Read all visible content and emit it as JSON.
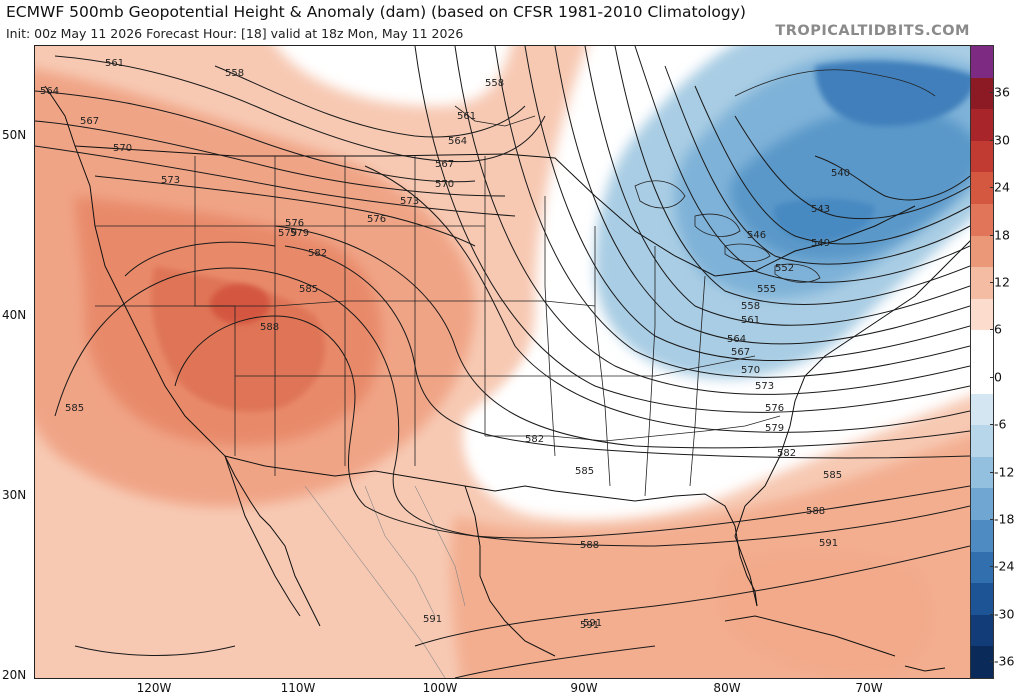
{
  "header": {
    "title": "ECMWF 500mb Geopotential Height & Anomaly (dam) (based on CFSR 1981-2010 Climatology)",
    "subtitle": "Init: 00z May 11 2026   Forecast Hour: [18]   valid at 18z Mon, May 11 2026",
    "brand": "TROPICALTIDBITS.COM"
  },
  "map": {
    "lat_labels": [
      "50N",
      "40N",
      "30N",
      "20N"
    ],
    "lon_labels": [
      "120W",
      "110W",
      "100W",
      "90W",
      "80W",
      "70W"
    ],
    "contour_labels": [
      "561",
      "558",
      "564",
      "567",
      "570",
      "573",
      "576",
      "579",
      "582",
      "585",
      "588",
      "591",
      "558",
      "561",
      "564",
      "567",
      "570",
      "573",
      "576",
      "579",
      "582",
      "585",
      "588",
      "591",
      "540",
      "543",
      "546",
      "549",
      "552",
      "555",
      "558",
      "561",
      "564",
      "567",
      "570",
      "573",
      "576",
      "579",
      "582",
      "585",
      "588",
      "591",
      "585",
      "591"
    ]
  },
  "colorbar": {
    "ticks": [
      "36",
      "30",
      "24",
      "18",
      "12",
      "6",
      "0",
      "-6",
      "-12",
      "-18",
      "-24",
      "-30",
      "-36"
    ],
    "colors": [
      "#7d2a83",
      "#8c1a24",
      "#a8262a",
      "#c23b33",
      "#d4573f",
      "#e0755a",
      "#eb9878",
      "#f4bda3",
      "#fbdccd",
      "#ffffff",
      "#ffffff",
      "#d3e6f1",
      "#b7d6ea",
      "#93c0df",
      "#6fa6d2",
      "#4d8bc2",
      "#326faf",
      "#1d5495",
      "#113c78",
      "#0a2a5a"
    ]
  },
  "chart_data": {
    "type": "heatmap",
    "title": "ECMWF 500mb Geopotential Height & Anomaly (dam) (based on CFSR 1981-2010 Climatology)",
    "field": "500mb geopotential height (dam) contours with anomaly (dam) shading",
    "lat_range": [
      20,
      55
    ],
    "lon_range": [
      -128,
      -63
    ],
    "anomaly_scale": [
      -36,
      36
    ],
    "height_contours_dam": [
      540,
      543,
      546,
      549,
      552,
      555,
      558,
      561,
      564,
      567,
      570,
      573,
      576,
      579,
      582,
      585,
      588,
      591
    ],
    "features": [
      {
        "name": "ridge",
        "center_lat": 39.5,
        "center_lon": -112,
        "max_anomaly_dam": 18,
        "max_height_dam": 588
      },
      {
        "name": "trough",
        "center_lat": 47,
        "center_lon": -76,
        "min_anomaly_dam": -24,
        "min_height_dam": 540
      }
    ]
  }
}
